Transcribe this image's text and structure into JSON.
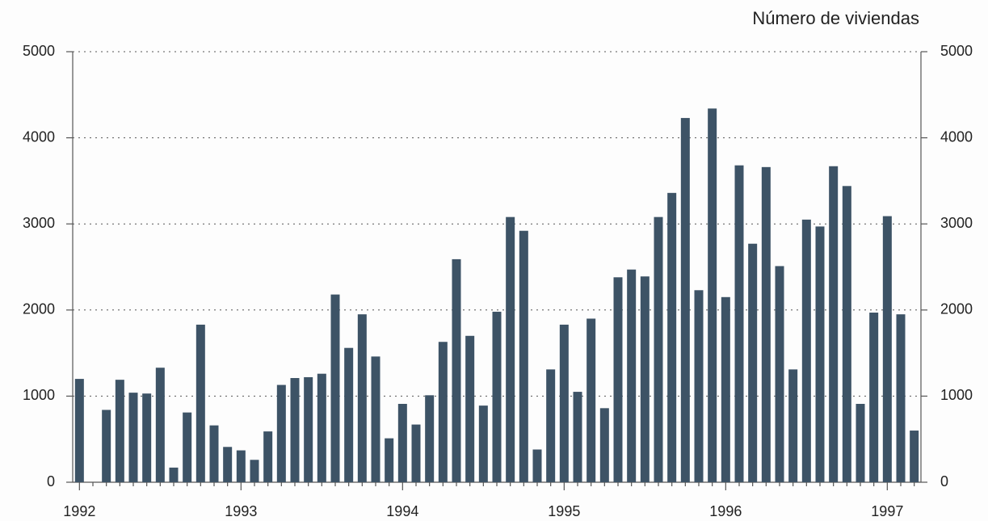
{
  "chart_data": {
    "type": "bar",
    "title": "Número de viviendas",
    "categories": [
      "1992",
      null,
      null,
      null,
      null,
      null,
      null,
      null,
      null,
      null,
      null,
      null,
      "1993",
      null,
      null,
      null,
      null,
      null,
      null,
      null,
      null,
      null,
      null,
      null,
      "1994",
      null,
      null,
      null,
      null,
      null,
      null,
      null,
      null,
      null,
      null,
      null,
      "1995",
      null,
      null,
      null,
      null,
      null,
      null,
      null,
      null,
      null,
      null,
      null,
      "1996",
      null,
      null,
      null,
      null,
      null,
      null,
      null,
      null,
      null,
      null,
      null,
      "1997",
      null,
      null
    ],
    "values": [
      1200,
      0,
      840,
      1190,
      1040,
      1030,
      1330,
      170,
      810,
      1830,
      660,
      410,
      370,
      260,
      590,
      1130,
      1210,
      1220,
      1260,
      2180,
      1560,
      1950,
      1460,
      510,
      910,
      670,
      1010,
      1630,
      2590,
      1700,
      890,
      1980,
      3080,
      2920,
      380,
      1310,
      1830,
      1050,
      1900,
      860,
      2380,
      2470,
      2390,
      3080,
      3360,
      4230,
      2230,
      4340,
      2150,
      3680,
      2770,
      3660,
      2510,
      1310,
      3050,
      2970,
      3670,
      3440,
      910,
      1970,
      3090,
      1950,
      600
    ],
    "color": "#3d5366",
    "ylim": [
      0,
      5000
    ],
    "yticks": [
      0,
      1000,
      2000,
      3000,
      4000,
      5000
    ],
    "y2lim": [
      0,
      5000
    ],
    "y2ticks": [
      0,
      1000,
      2000,
      3000,
      4000,
      5000
    ],
    "grid": true
  }
}
